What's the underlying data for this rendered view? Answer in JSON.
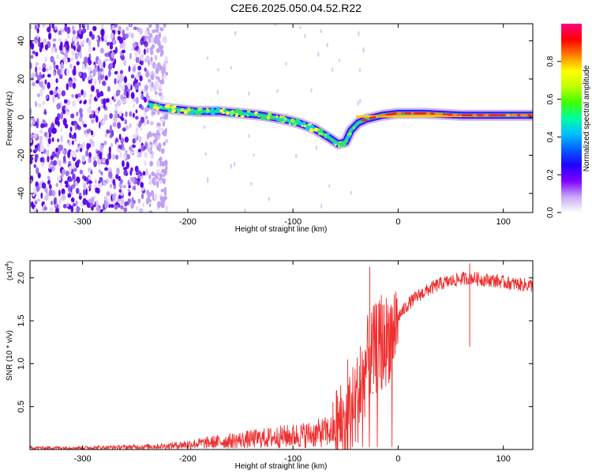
{
  "page": {
    "title": "C2E6.2025.050.04.52.R22"
  },
  "chart_data": [
    {
      "type": "heatmap",
      "xlabel": "Height of straight line (km)",
      "ylabel": "Frequency (Hz)",
      "xlim": [
        -350,
        128
      ],
      "ylim": [
        -50,
        49
      ],
      "xticks": [
        -300,
        -200,
        -100,
        0,
        100
      ],
      "yticks": [
        -40,
        -20,
        0,
        20,
        40
      ],
      "ridge": [
        {
          "x": -238,
          "y": 7
        },
        {
          "x": -225,
          "y": 5
        },
        {
          "x": -210,
          "y": 4
        },
        {
          "x": -190,
          "y": 3
        },
        {
          "x": -170,
          "y": 3
        },
        {
          "x": -150,
          "y": 2
        },
        {
          "x": -130,
          "y": 1
        },
        {
          "x": -110,
          "y": -1
        },
        {
          "x": -95,
          "y": -3
        },
        {
          "x": -80,
          "y": -6
        },
        {
          "x": -65,
          "y": -11
        },
        {
          "x": -57,
          "y": -14
        },
        {
          "x": -50,
          "y": -13
        },
        {
          "x": -45,
          "y": -7
        },
        {
          "x": -38,
          "y": -3
        },
        {
          "x": -30,
          "y": -1
        },
        {
          "x": -15,
          "y": 1
        },
        {
          "x": 0,
          "y": 2
        },
        {
          "x": 25,
          "y": 2
        },
        {
          "x": 60,
          "y": 1
        },
        {
          "x": 100,
          "y": 1
        },
        {
          "x": 128,
          "y": 1
        }
      ],
      "noise_region_x": [
        -350,
        -220
      ],
      "colorbar": {
        "label": "Normalized spectral amplitude",
        "range": [
          0.0,
          1.0
        ],
        "ticks": [
          "0.0",
          "0.2",
          "0.4",
          "0.6",
          "0.8"
        ],
        "colors": [
          "#ffffff",
          "#c8a8f8",
          "#8000ff",
          "#2000ff",
          "#0060ff",
          "#00c0ff",
          "#00ffa0",
          "#40ff00",
          "#c0ff00",
          "#ffff00",
          "#ff8000",
          "#ff0000",
          "#ff0080"
        ]
      }
    },
    {
      "type": "line",
      "xlabel": "Height of straight line (km)",
      "ylabel": "SNR (10 * v/v)",
      "scale_label": "(x10",
      "scale_exp": "4",
      "xlim": [
        -350,
        128
      ],
      "ylim": [
        0,
        2.2
      ],
      "xticks": [
        -300,
        -200,
        -100,
        0,
        100
      ],
      "yticks": [
        "0.5",
        "1.0",
        "1.5",
        "2.0"
      ],
      "color": "#ee3030",
      "envelope": [
        [
          -350,
          0.02
        ],
        [
          -300,
          0.02
        ],
        [
          -250,
          0.03
        ],
        [
          -220,
          0.04
        ],
        [
          -200,
          0.06
        ],
        [
          -180,
          0.08
        ],
        [
          -160,
          0.1
        ],
        [
          -140,
          0.12
        ],
        [
          -120,
          0.14
        ],
        [
          -100,
          0.16
        ],
        [
          -80,
          0.18
        ],
        [
          -60,
          0.22
        ],
        [
          -50,
          0.3
        ],
        [
          -45,
          0.4
        ],
        [
          -40,
          0.55
        ],
        [
          -35,
          0.75
        ],
        [
          -30,
          1.0
        ],
        [
          -25,
          1.1
        ],
        [
          -20,
          1.2
        ],
        [
          -15,
          1.2
        ],
        [
          -10,
          1.3
        ],
        [
          -5,
          1.4
        ],
        [
          0,
          1.55
        ],
        [
          5,
          1.62
        ],
        [
          10,
          1.7
        ],
        [
          20,
          1.8
        ],
        [
          30,
          1.87
        ],
        [
          40,
          1.93
        ],
        [
          50,
          1.96
        ],
        [
          60,
          1.99
        ],
        [
          70,
          2.0
        ],
        [
          80,
          1.98
        ],
        [
          90,
          1.97
        ],
        [
          100,
          1.95
        ],
        [
          110,
          1.93
        ],
        [
          120,
          1.92
        ],
        [
          128,
          1.91
        ]
      ],
      "spikes": [
        [
          -62,
          0.55
        ],
        [
          -48,
          1.05
        ],
        [
          -36,
          1.2
        ],
        [
          -27,
          2.13
        ],
        [
          -24,
          0.65
        ],
        [
          -16,
          1.8
        ],
        [
          68,
          2.17
        ]
      ]
    }
  ]
}
